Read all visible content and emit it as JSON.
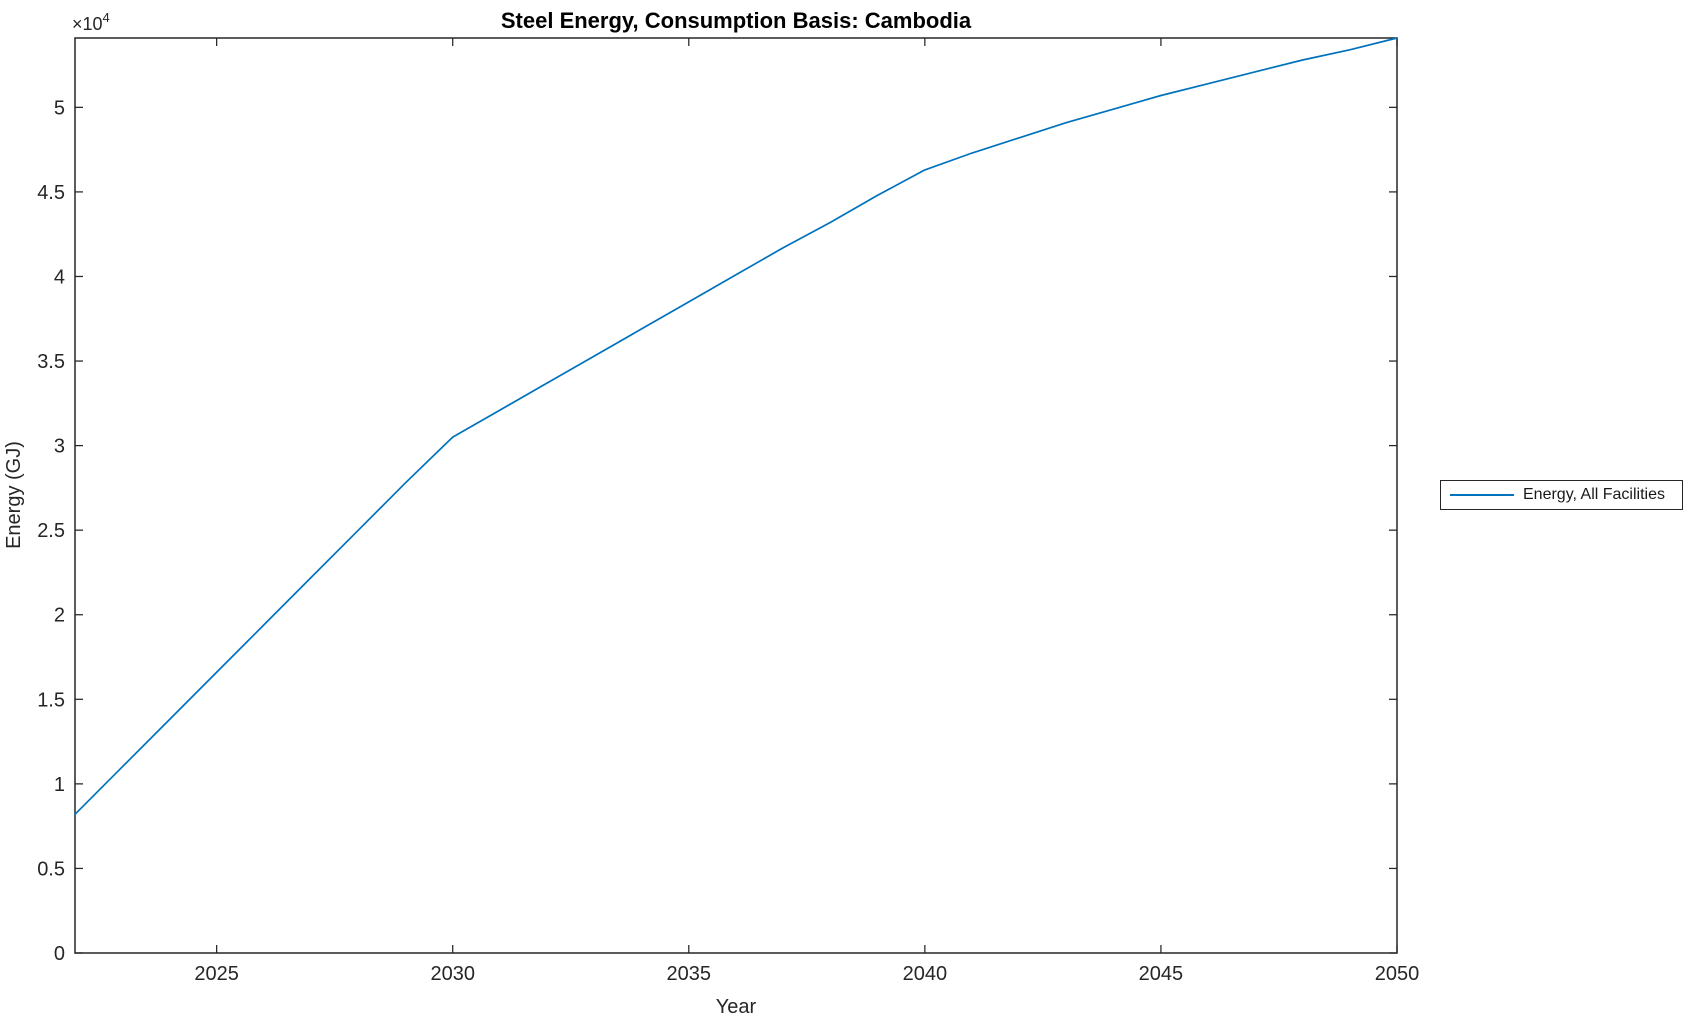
{
  "chart_data": {
    "type": "line",
    "title": "Steel Energy, Consumption Basis: Cambodia",
    "xlabel": "Year",
    "ylabel": "Energy (GJ)",
    "y_axis_multiplier": {
      "base": "×10",
      "exponent": "4"
    },
    "xlim": [
      2022,
      2050
    ],
    "ylim": [
      0,
      54100
    ],
    "grid": false,
    "legend": {
      "position": "right-outside",
      "entries": [
        "Energy, All Facilities"
      ]
    },
    "axis_color": "#262626",
    "x": [
      2022,
      2023,
      2024,
      2025,
      2026,
      2027,
      2028,
      2029,
      2030,
      2031,
      2032,
      2033,
      2034,
      2035,
      2036,
      2037,
      2038,
      2039,
      2040,
      2041,
      2042,
      2043,
      2044,
      2045,
      2046,
      2047,
      2048,
      2049,
      2050
    ],
    "series": [
      {
        "name": "Energy, All Facilities",
        "color": "#0072BD",
        "values": [
          8200,
          11000,
          13800,
          16600,
          19400,
          22200,
          25000,
          27800,
          30500,
          32100,
          33700,
          35300,
          36900,
          38500,
          40100,
          41700,
          43200,
          44800,
          46300,
          47300,
          48200,
          49100,
          49900,
          50700,
          51400,
          52100,
          52800,
          53400,
          54100
        ]
      }
    ],
    "xticks": [
      {
        "value": 2025,
        "label": "2025"
      },
      {
        "value": 2030,
        "label": "2030"
      },
      {
        "value": 2035,
        "label": "2035"
      },
      {
        "value": 2040,
        "label": "2040"
      },
      {
        "value": 2045,
        "label": "2045"
      },
      {
        "value": 2050,
        "label": "2050"
      }
    ],
    "yticks": [
      {
        "value": 0,
        "label": "0"
      },
      {
        "value": 5000,
        "label": "0.5"
      },
      {
        "value": 10000,
        "label": "1"
      },
      {
        "value": 15000,
        "label": "1.5"
      },
      {
        "value": 20000,
        "label": "2"
      },
      {
        "value": 25000,
        "label": "2.5"
      },
      {
        "value": 30000,
        "label": "3"
      },
      {
        "value": 35000,
        "label": "3.5"
      },
      {
        "value": 40000,
        "label": "4"
      },
      {
        "value": 45000,
        "label": "4.5"
      },
      {
        "value": 50000,
        "label": "5"
      }
    ]
  }
}
